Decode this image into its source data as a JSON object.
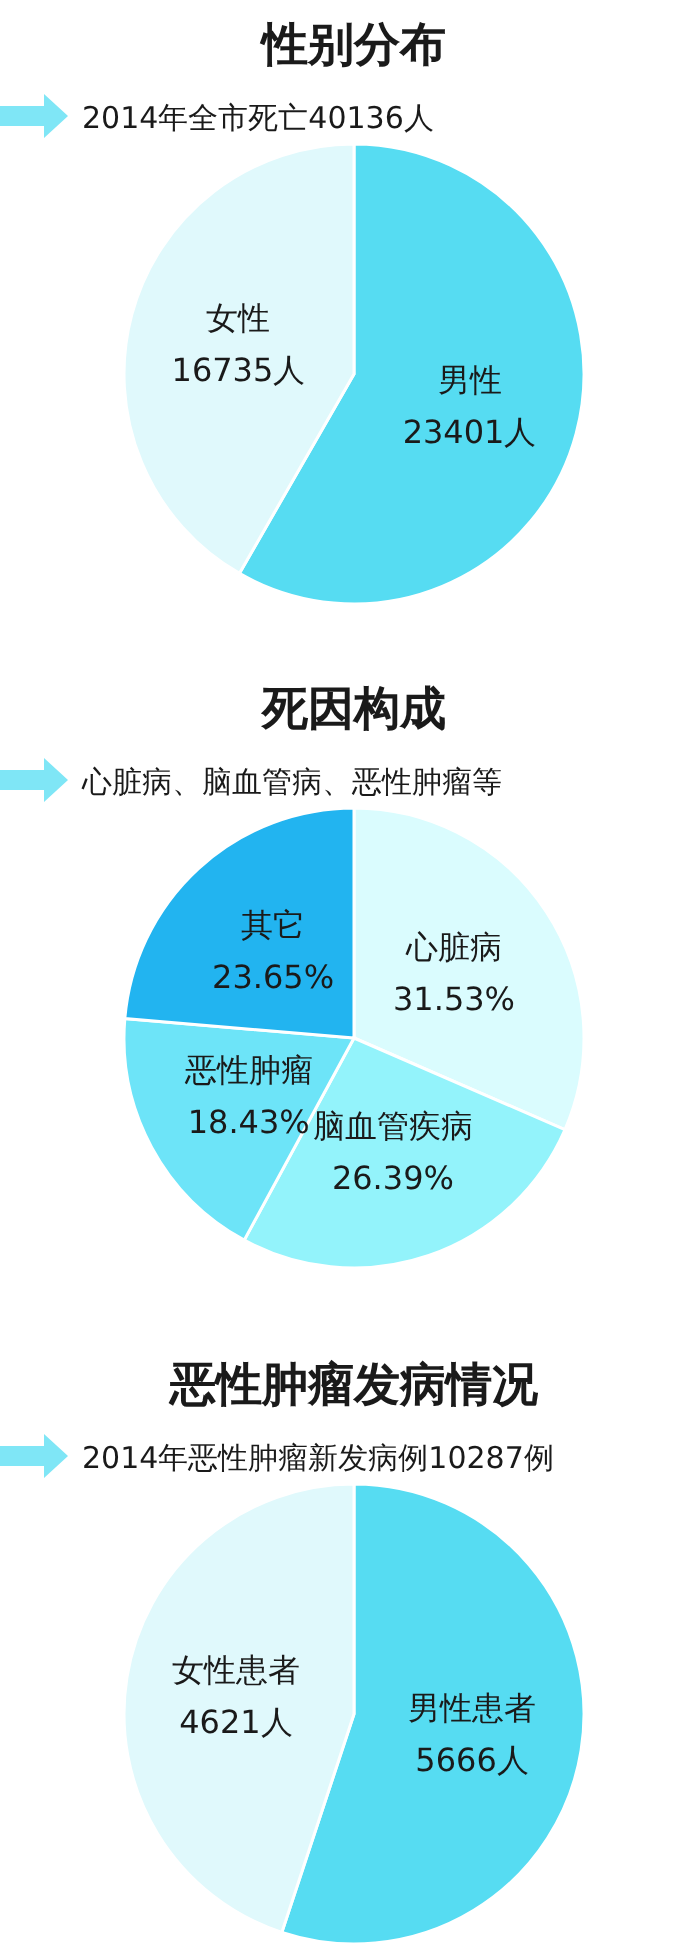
{
  "chart_data": [
    {
      "type": "pie",
      "title": "性别分布",
      "subtitle": "2014年全市死亡40136人",
      "categories": [
        "男性",
        "女性"
      ],
      "values": [
        23401,
        16735
      ],
      "value_labels": [
        "23401人",
        "16735人"
      ],
      "colors": [
        "#56dcf2",
        "#e0f9fc"
      ]
    },
    {
      "type": "pie",
      "title": "死因构成",
      "subtitle": "心脏病、脑血管病、恶性肿瘤等",
      "categories": [
        "心脏病",
        "脑血管疾病",
        "恶性肿瘤",
        "其它"
      ],
      "values": [
        31.53,
        26.39,
        18.43,
        23.65
      ],
      "value_labels": [
        "31.53%",
        "26.39%",
        "18.43%",
        "23.65%"
      ],
      "colors": [
        "#dafcfe",
        "#93f3fb",
        "#6de4f8",
        "#22b4f0"
      ]
    },
    {
      "type": "pie",
      "title": "恶性肿瘤发病情况",
      "subtitle": "2014年恶性肿瘤新发病例10287例",
      "categories": [
        "男性患者",
        "女性患者"
      ],
      "values": [
        5666,
        4621
      ],
      "value_labels": [
        "5666人",
        "4621人"
      ],
      "colors": [
        "#56dcf2",
        "#e0f9fc"
      ]
    }
  ]
}
